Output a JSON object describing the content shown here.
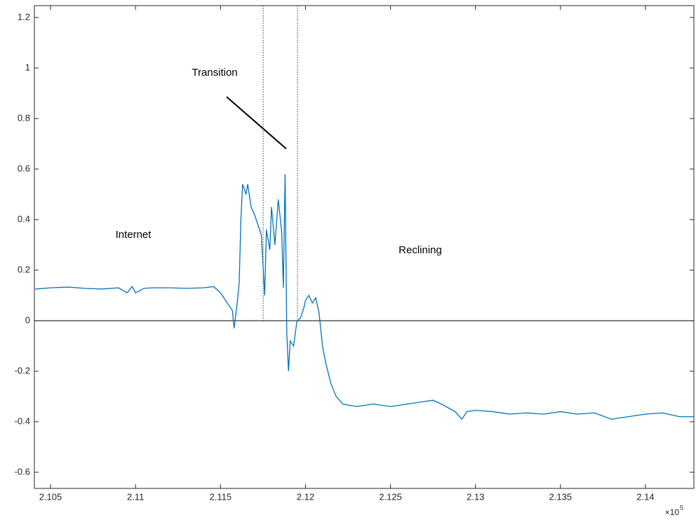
{
  "chart_data": {
    "type": "line",
    "x": [
      2.1041,
      2.105,
      2.106,
      2.107,
      2.108,
      2.109,
      2.1095,
      2.1098,
      2.11,
      2.1105,
      2.111,
      2.112,
      2.113,
      2.114,
      2.1146,
      2.115,
      2.1153,
      2.1157,
      2.1158,
      2.116,
      2.1161,
      2.1162,
      2.1163,
      2.1165,
      2.1166,
      2.1168,
      2.117,
      2.1172,
      2.1174,
      2.1176,
      2.1177,
      2.1179,
      2.118,
      2.1182,
      2.1184,
      2.1186,
      2.1187,
      2.1188,
      2.1189,
      2.119,
      2.1191,
      2.1193,
      2.1195,
      2.1197,
      2.1199,
      2.12,
      2.1202,
      2.1204,
      2.1206,
      2.1208,
      2.121,
      2.1212,
      2.1215,
      2.1218,
      2.1222,
      2.123,
      2.124,
      2.125,
      2.126,
      2.127,
      2.1275,
      2.128,
      2.1288,
      2.1292,
      2.1295,
      2.13,
      2.131,
      2.132,
      2.133,
      2.134,
      2.135,
      2.136,
      2.137,
      2.138,
      2.139,
      2.14,
      2.141,
      2.142,
      2.14285
    ],
    "series": [
      {
        "color": "#0072bd",
        "values": [
          0.125,
          0.13,
          0.133,
          0.128,
          0.125,
          0.13,
          0.11,
          0.135,
          0.11,
          0.128,
          0.13,
          0.13,
          0.128,
          0.13,
          0.135,
          0.11,
          0.08,
          0.04,
          -0.03,
          0.08,
          0.15,
          0.4,
          0.54,
          0.5,
          0.54,
          0.45,
          0.42,
          0.38,
          0.34,
          0.1,
          0.36,
          0.28,
          0.45,
          0.3,
          0.48,
          0.35,
          0.13,
          0.58,
          -0.05,
          -0.2,
          -0.08,
          -0.1,
          0.0,
          0.01,
          0.05,
          0.08,
          0.1,
          0.07,
          0.09,
          0.03,
          -0.1,
          -0.17,
          -0.25,
          -0.3,
          -0.33,
          -0.34,
          -0.33,
          -0.34,
          -0.33,
          -0.32,
          -0.315,
          -0.33,
          -0.36,
          -0.39,
          -0.36,
          -0.355,
          -0.36,
          -0.37,
          -0.365,
          -0.37,
          -0.36,
          -0.37,
          -0.365,
          -0.39,
          -0.38,
          -0.37,
          -0.365,
          -0.38,
          -0.38
        ]
      }
    ],
    "xlim": [
      2.10405,
      2.14285
    ],
    "ylim": [
      -0.664,
      1.247
    ],
    "xticks": [
      2.105,
      2.11,
      2.115,
      2.12,
      2.125,
      2.13,
      2.135,
      2.14
    ],
    "yticks": [
      -0.6,
      -0.4,
      -0.2,
      0,
      0.2,
      0.4,
      0.6,
      0.8,
      1,
      1.2
    ],
    "x_multiplier": "×10",
    "x_multiplier_exponent": "5",
    "vlines": [
      2.11751,
      2.11953
    ],
    "annotations": [
      "Transition",
      "Internet",
      "Reclining"
    ]
  }
}
